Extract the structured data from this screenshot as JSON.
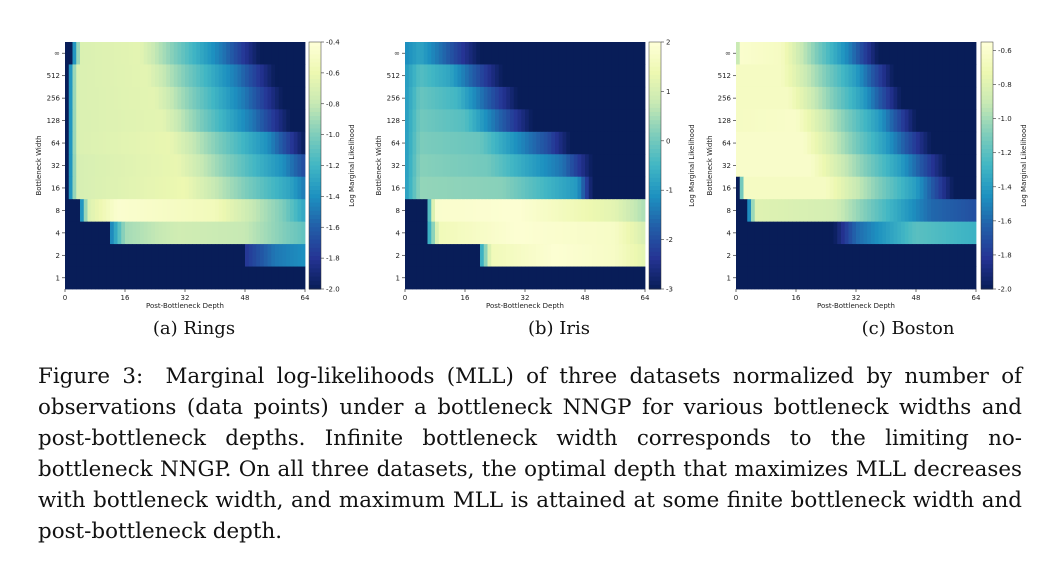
{
  "colors": {
    "cmap": [
      "#081d58",
      "#253494",
      "#225ea8",
      "#1d91c0",
      "#41b6c4",
      "#7fcdbb",
      "#c7e9b4",
      "#edf8b1",
      "#ffffd9"
    ],
    "background": "#ffffff"
  },
  "figure": {
    "caption_label": "Figure 3:",
    "caption_text": "Marginal log-likelihoods (MLL) of three datasets normalized by number of observations (data points) under a bottleneck NNGP for various bottleneck widths and post-bottleneck depths. Infinite bottleneck width corresponds to the limiting no-bottleneck NNGP. On all three datasets, the optimal depth that maximizes MLL decreases with bottleneck width, and maximum MLL is attained at some finite bottleneck width and post-bottleneck depth."
  },
  "chart_data": [
    {
      "type": "heatmap",
      "subcaption": "(a) Rings",
      "xlabel": "Post-Bottleneck Depth",
      "ylabel": "Bottleneck Width",
      "colorbar_label": "Log Marginal Likelihood",
      "x_ticks": [
        "0",
        "16",
        "32",
        "48",
        "64"
      ],
      "x_range": [
        0,
        64
      ],
      "y_ticks": [
        "∞",
        "512",
        "256",
        "128",
        "64",
        "32",
        "16",
        "8",
        "4",
        "2",
        "1"
      ],
      "clim": [
        -2.0,
        -0.4
      ],
      "colorbar_ticks": [
        "-0.4",
        "-0.6",
        "-0.8",
        "-1.0",
        "-1.2",
        "-1.4",
        "-1.6",
        "-1.8",
        "-2.0"
      ],
      "colorbar_tick_values": [
        -0.4,
        -0.6,
        -0.8,
        -1.0,
        -1.2,
        -1.4,
        -1.6,
        -1.8,
        -2.0
      ],
      "rows": [
        {
          "width": "∞",
          "start": 2,
          "profile": [
            [
              2,
              -1.6
            ],
            [
              4,
              -0.7
            ],
            [
              20,
              -0.65
            ],
            [
              42,
              -1.5
            ],
            [
              52,
              -2.0
            ],
            [
              64,
              -2.0
            ]
          ]
        },
        {
          "width": "512",
          "start": 1,
          "profile": [
            [
              1,
              -1.6
            ],
            [
              3,
              -0.7
            ],
            [
              22,
              -0.65
            ],
            [
              46,
              -1.5
            ],
            [
              56,
              -2.0
            ],
            [
              64,
              -2.0
            ]
          ]
        },
        {
          "width": "256",
          "start": 1,
          "profile": [
            [
              1,
              -1.6
            ],
            [
              3,
              -0.7
            ],
            [
              24,
              -0.65
            ],
            [
              48,
              -1.5
            ],
            [
              58,
              -2.0
            ],
            [
              64,
              -2.0
            ]
          ]
        },
        {
          "width": "128",
          "start": 1,
          "profile": [
            [
              1,
              -1.6
            ],
            [
              3,
              -0.7
            ],
            [
              26,
              -0.65
            ],
            [
              50,
              -1.5
            ],
            [
              60,
              -2.0
            ],
            [
              64,
              -2.0
            ]
          ]
        },
        {
          "width": "64",
          "start": 1,
          "profile": [
            [
              1,
              -1.6
            ],
            [
              3,
              -0.7
            ],
            [
              28,
              -0.62
            ],
            [
              54,
              -1.4
            ],
            [
              64,
              -2.0
            ]
          ]
        },
        {
          "width": "32",
          "start": 1,
          "profile": [
            [
              1,
              -1.6
            ],
            [
              3,
              -0.72
            ],
            [
              30,
              -0.62
            ],
            [
              58,
              -1.4
            ],
            [
              64,
              -1.7
            ]
          ]
        },
        {
          "width": "16",
          "start": 1,
          "profile": [
            [
              1,
              -1.6
            ],
            [
              3,
              -0.72
            ],
            [
              32,
              -0.6
            ],
            [
              60,
              -1.3
            ],
            [
              64,
              -1.5
            ]
          ]
        },
        {
          "width": "8",
          "start": 4,
          "profile": [
            [
              4,
              -1.6
            ],
            [
              6,
              -0.7
            ],
            [
              14,
              -0.45
            ],
            [
              40,
              -0.55
            ],
            [
              58,
              -1.0
            ],
            [
              64,
              -1.3
            ]
          ]
        },
        {
          "width": "4",
          "start": 12,
          "profile": [
            [
              12,
              -1.5
            ],
            [
              16,
              -0.9
            ],
            [
              30,
              -0.75
            ],
            [
              48,
              -0.8
            ],
            [
              64,
              -1.1
            ]
          ]
        },
        {
          "width": "2",
          "start": 48,
          "profile": [
            [
              48,
              -1.8
            ],
            [
              56,
              -1.5
            ],
            [
              64,
              -1.4
            ]
          ]
        },
        {
          "width": "1",
          "start": 64,
          "profile": [
            [
              64,
              -2.0
            ]
          ]
        }
      ]
    },
    {
      "type": "heatmap",
      "subcaption": "(b) Iris",
      "xlabel": "Post-Bottleneck Depth",
      "ylabel": "Bottleneck Width",
      "colorbar_label": "Log Marginal Likelihood",
      "x_ticks": [
        "0",
        "16",
        "32",
        "48",
        "64"
      ],
      "x_range": [
        0,
        64
      ],
      "y_ticks": [
        "∞",
        "512",
        "256",
        "128",
        "64",
        "32",
        "16",
        "8",
        "4",
        "2",
        "1"
      ],
      "clim": [
        -3,
        2
      ],
      "colorbar_ticks": [
        "2",
        "1",
        "0",
        "-1",
        "-2",
        "-3"
      ],
      "colorbar_tick_values": [
        2,
        1,
        0,
        -1,
        -2,
        -3
      ],
      "rows": [
        {
          "width": "∞",
          "start": 0,
          "profile": [
            [
              0,
              -1.2
            ],
            [
              4,
              -0.8
            ],
            [
              10,
              -1.6
            ],
            [
              20,
              -3.0
            ],
            [
              64,
              -3.0
            ]
          ]
        },
        {
          "width": "512",
          "start": 0,
          "profile": [
            [
              0,
              -1.0
            ],
            [
              4,
              -0.3
            ],
            [
              12,
              -0.8
            ],
            [
              26,
              -3.0
            ],
            [
              64,
              -3.0
            ]
          ]
        },
        {
          "width": "256",
          "start": 0,
          "profile": [
            [
              0,
              -1.0
            ],
            [
              4,
              -0.1
            ],
            [
              14,
              -0.5
            ],
            [
              30,
              -3.0
            ],
            [
              64,
              -3.0
            ]
          ]
        },
        {
          "width": "128",
          "start": 0,
          "profile": [
            [
              0,
              -1.0
            ],
            [
              4,
              0.0
            ],
            [
              16,
              -0.3
            ],
            [
              34,
              -3.0
            ],
            [
              64,
              -3.0
            ]
          ]
        },
        {
          "width": "64",
          "start": 0,
          "profile": [
            [
              0,
              -1.0
            ],
            [
              4,
              0.1
            ],
            [
              20,
              -0.1
            ],
            [
              38,
              -2.0
            ],
            [
              44,
              -3.0
            ],
            [
              64,
              -3.0
            ]
          ]
        },
        {
          "width": "32",
          "start": 0,
          "profile": [
            [
              0,
              -1.0
            ],
            [
              4,
              0.2
            ],
            [
              22,
              0.0
            ],
            [
              42,
              -1.5
            ],
            [
              50,
              -3.0
            ],
            [
              64,
              -3.0
            ]
          ]
        },
        {
          "width": "16",
          "start": 0,
          "profile": [
            [
              0,
              -1.0
            ],
            [
              4,
              0.3
            ],
            [
              26,
              0.2
            ],
            [
              46,
              -1.0
            ],
            [
              50,
              -3.0
            ],
            [
              64,
              -3.0
            ]
          ]
        },
        {
          "width": "8",
          "start": 6,
          "profile": [
            [
              6,
              -1.0
            ],
            [
              8,
              1.8
            ],
            [
              30,
              1.9
            ],
            [
              56,
              1.2
            ],
            [
              64,
              0.5
            ]
          ]
        },
        {
          "width": "4",
          "start": 6,
          "profile": [
            [
              6,
              -1.0
            ],
            [
              9,
              1.5
            ],
            [
              30,
              1.9
            ],
            [
              56,
              1.7
            ],
            [
              64,
              1.0
            ]
          ]
        },
        {
          "width": "2",
          "start": 20,
          "profile": [
            [
              20,
              -1.0
            ],
            [
              23,
              1.5
            ],
            [
              40,
              1.9
            ],
            [
              56,
              1.7
            ],
            [
              64,
              1.2
            ]
          ]
        },
        {
          "width": "1",
          "start": 64,
          "profile": [
            [
              64,
              -3.0
            ]
          ]
        }
      ]
    },
    {
      "type": "heatmap",
      "subcaption": "(c) Boston",
      "xlabel": "Post-Bottleneck Depth",
      "ylabel": "Bottleneck Width",
      "colorbar_label": "Log Marginal Likelihood",
      "x_ticks": [
        "0",
        "16",
        "32",
        "48",
        "64"
      ],
      "x_range": [
        0,
        64
      ],
      "y_ticks": [
        "∞",
        "512",
        "256",
        "128",
        "64",
        "32",
        "16",
        "8",
        "4",
        "2",
        "1"
      ],
      "clim": [
        -2.0,
        -0.55
      ],
      "colorbar_ticks": [
        "-0.6",
        "-0.8",
        "-1.0",
        "-1.2",
        "-1.4",
        "-1.6",
        "-1.8",
        "-2.0"
      ],
      "colorbar_tick_values": [
        -0.6,
        -0.8,
        -1.0,
        -1.2,
        -1.4,
        -1.6,
        -1.8,
        -2.0
      ],
      "rows": [
        {
          "width": "∞",
          "start": 0,
          "profile": [
            [
              0,
              -1.2
            ],
            [
              1,
              -0.6
            ],
            [
              12,
              -0.65
            ],
            [
              30,
              -1.5
            ],
            [
              38,
              -2.0
            ],
            [
              64,
              -2.0
            ]
          ]
        },
        {
          "width": "512",
          "start": 0,
          "profile": [
            [
              0,
              -0.65
            ],
            [
              12,
              -0.65
            ],
            [
              32,
              -1.4
            ],
            [
              42,
              -2.0
            ],
            [
              64,
              -2.0
            ]
          ]
        },
        {
          "width": "256",
          "start": 0,
          "profile": [
            [
              0,
              -0.65
            ],
            [
              14,
              -0.65
            ],
            [
              34,
              -1.4
            ],
            [
              44,
              -2.0
            ],
            [
              64,
              -2.0
            ]
          ]
        },
        {
          "width": "128",
          "start": 0,
          "profile": [
            [
              0,
              -0.65
            ],
            [
              16,
              -0.62
            ],
            [
              38,
              -1.4
            ],
            [
              48,
              -2.0
            ],
            [
              64,
              -2.0
            ]
          ]
        },
        {
          "width": "64",
          "start": 0,
          "profile": [
            [
              0,
              -0.62
            ],
            [
              18,
              -0.62
            ],
            [
              40,
              -1.4
            ],
            [
              52,
              -2.0
            ],
            [
              64,
              -2.0
            ]
          ]
        },
        {
          "width": "32",
          "start": 0,
          "profile": [
            [
              0,
              -0.62
            ],
            [
              20,
              -0.62
            ],
            [
              44,
              -1.4
            ],
            [
              56,
              -2.0
            ],
            [
              64,
              -2.0
            ]
          ]
        },
        {
          "width": "16",
          "start": 1,
          "profile": [
            [
              1,
              -1.6
            ],
            [
              2,
              -0.65
            ],
            [
              24,
              -0.65
            ],
            [
              48,
              -1.4
            ],
            [
              58,
              -2.0
            ],
            [
              64,
              -2.0
            ]
          ]
        },
        {
          "width": "8",
          "start": 3,
          "profile": [
            [
              3,
              -1.7
            ],
            [
              5,
              -0.8
            ],
            [
              26,
              -0.85
            ],
            [
              52,
              -1.6
            ],
            [
              64,
              -1.7
            ]
          ]
        },
        {
          "width": "4",
          "start": 26,
          "profile": [
            [
              26,
              -2.0
            ],
            [
              32,
              -1.6
            ],
            [
              48,
              -1.2
            ],
            [
              64,
              -1.3
            ]
          ]
        },
        {
          "width": "2",
          "start": 64,
          "profile": [
            [
              64,
              -2.0
            ]
          ]
        },
        {
          "width": "1",
          "start": 64,
          "profile": [
            [
              64,
              -2.0
            ]
          ]
        }
      ]
    }
  ]
}
